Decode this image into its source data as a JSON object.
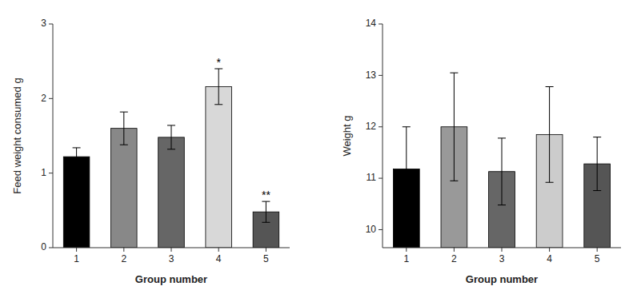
{
  "chart_data": [
    {
      "type": "bar",
      "categories": [
        "1",
        "2",
        "3",
        "4",
        "5"
      ],
      "values": [
        1.22,
        1.6,
        1.48,
        2.16,
        0.48
      ],
      "errors": [
        0.12,
        0.22,
        0.16,
        0.24,
        0.14
      ],
      "colors": [
        "#000000",
        "#888888",
        "#666666",
        "#d8d8d8",
        "#555555"
      ],
      "annotations": [
        null,
        null,
        null,
        "*",
        "**"
      ],
      "ylabel": "Feed weight consumed g",
      "xlabel": "Group number",
      "ylim": [
        0,
        3
      ],
      "yticks": [
        0,
        1,
        2,
        3
      ]
    },
    {
      "type": "bar",
      "categories": [
        "1",
        "2",
        "3",
        "4",
        "5"
      ],
      "values": [
        11.18,
        12.0,
        11.13,
        11.85,
        11.28
      ],
      "errors": [
        0.82,
        1.05,
        0.65,
        0.93,
        0.52
      ],
      "colors": [
        "#000000",
        "#999999",
        "#666666",
        "#cccccc",
        "#555555"
      ],
      "ylabel": "Weight g",
      "xlabel": "Group number",
      "ylim": [
        9.65,
        14
      ],
      "yticks": [
        10,
        11,
        12,
        13,
        14
      ]
    }
  ]
}
